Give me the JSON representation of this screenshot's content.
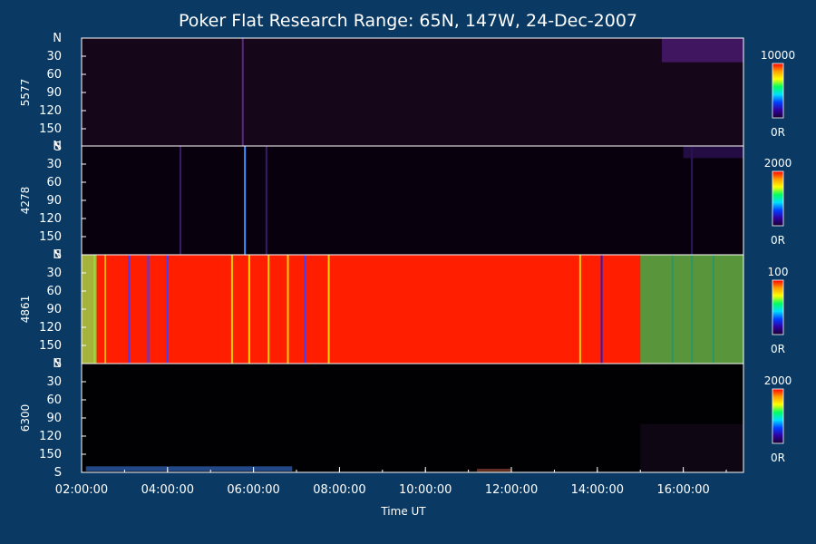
{
  "chart_data": {
    "type": "heatmap",
    "title": "Poker Flat Research Range: 65N, 147W, 24-Dec-2007",
    "xlabel": "Time UT",
    "x_ticks": [
      "02:00:00",
      "04:00:00",
      "06:00:00",
      "08:00:00",
      "10:00:00",
      "12:00:00",
      "14:00:00",
      "16:00:00"
    ],
    "x_range_hours": [
      2.0,
      17.4
    ],
    "y_range": [
      0,
      180
    ],
    "y_ticks": [
      "N",
      "30",
      "60",
      "90",
      "120",
      "150",
      "S"
    ],
    "panels": [
      {
        "ylabel": "5577",
        "colorbar_max": "10000",
        "colorbar_min": "0R",
        "background_color": "#16061a",
        "features": [
          {
            "kind": "line",
            "t": 5.75,
            "color": "#5a2a7a"
          },
          {
            "kind": "patch",
            "t0": 15.5,
            "t1": 17.4,
            "y0": 0,
            "y1": 40,
            "color": "#4a1a70"
          }
        ]
      },
      {
        "ylabel": "4278",
        "colorbar_max": "2000",
        "colorbar_min": "0R",
        "background_color": "#08000c",
        "features": [
          {
            "kind": "line",
            "t": 5.8,
            "color": "#3f8fff"
          },
          {
            "kind": "line",
            "t": 6.3,
            "color": "#3a1a6a"
          },
          {
            "kind": "line",
            "t": 4.3,
            "color": "#3a1a6a"
          },
          {
            "kind": "line",
            "t": 16.2,
            "color": "#2a1a5a"
          },
          {
            "kind": "patch",
            "t0": 16.0,
            "t1": 17.4,
            "y0": 0,
            "y1": 20,
            "color": "#2a1050"
          }
        ]
      },
      {
        "ylabel": "4861",
        "colorbar_max": "100",
        "colorbar_min": "0R",
        "background_color": "#ff1e00",
        "features": [
          {
            "kind": "line",
            "t": 2.3,
            "color": "#d8d800"
          },
          {
            "kind": "line",
            "t": 2.55,
            "color": "#ffaa00"
          },
          {
            "kind": "line",
            "t": 3.1,
            "color": "#4040ff"
          },
          {
            "kind": "line",
            "t": 3.55,
            "color": "#4040ff"
          },
          {
            "kind": "line",
            "t": 4.0,
            "color": "#4040ff"
          },
          {
            "kind": "line",
            "t": 5.5,
            "color": "#ffd000"
          },
          {
            "kind": "line",
            "t": 5.9,
            "color": "#ffd000"
          },
          {
            "kind": "line",
            "t": 6.35,
            "color": "#ffd000"
          },
          {
            "kind": "line",
            "t": 6.8,
            "color": "#ffd000"
          },
          {
            "kind": "line",
            "t": 7.2,
            "color": "#4040ff"
          },
          {
            "kind": "line",
            "t": 7.75,
            "color": "#ffd000"
          },
          {
            "kind": "line",
            "t": 13.6,
            "color": "#ffd000"
          },
          {
            "kind": "line",
            "t": 14.1,
            "color": "#2020cc"
          },
          {
            "kind": "line",
            "t": 15.75,
            "color": "#2020cc"
          },
          {
            "kind": "line",
            "t": 16.2,
            "color": "#2020cc"
          },
          {
            "kind": "line",
            "t": 16.7,
            "color": "#2020cc"
          },
          {
            "kind": "patch",
            "t0": 15.0,
            "t1": 17.4,
            "y0": 0,
            "y1": 180,
            "color": "#2fb34a"
          },
          {
            "kind": "patch",
            "t0": 2.0,
            "t1": 2.35,
            "y0": 0,
            "y1": 180,
            "color": "#8fd84a"
          }
        ]
      },
      {
        "ylabel": "6300",
        "colorbar_max": "2000",
        "colorbar_min": "0R",
        "background_color": "#010003",
        "features": [
          {
            "kind": "patch",
            "t0": 2.1,
            "t1": 6.9,
            "y0": 170,
            "y1": 178,
            "color": "#2a5aaa"
          },
          {
            "kind": "patch",
            "t0": 11.2,
            "t1": 12.0,
            "y0": 174,
            "y1": 179,
            "color": "#7a3a2a"
          },
          {
            "kind": "patch",
            "t0": 15.0,
            "t1": 17.4,
            "y0": 100,
            "y1": 180,
            "color": "#120818"
          }
        ]
      }
    ]
  }
}
